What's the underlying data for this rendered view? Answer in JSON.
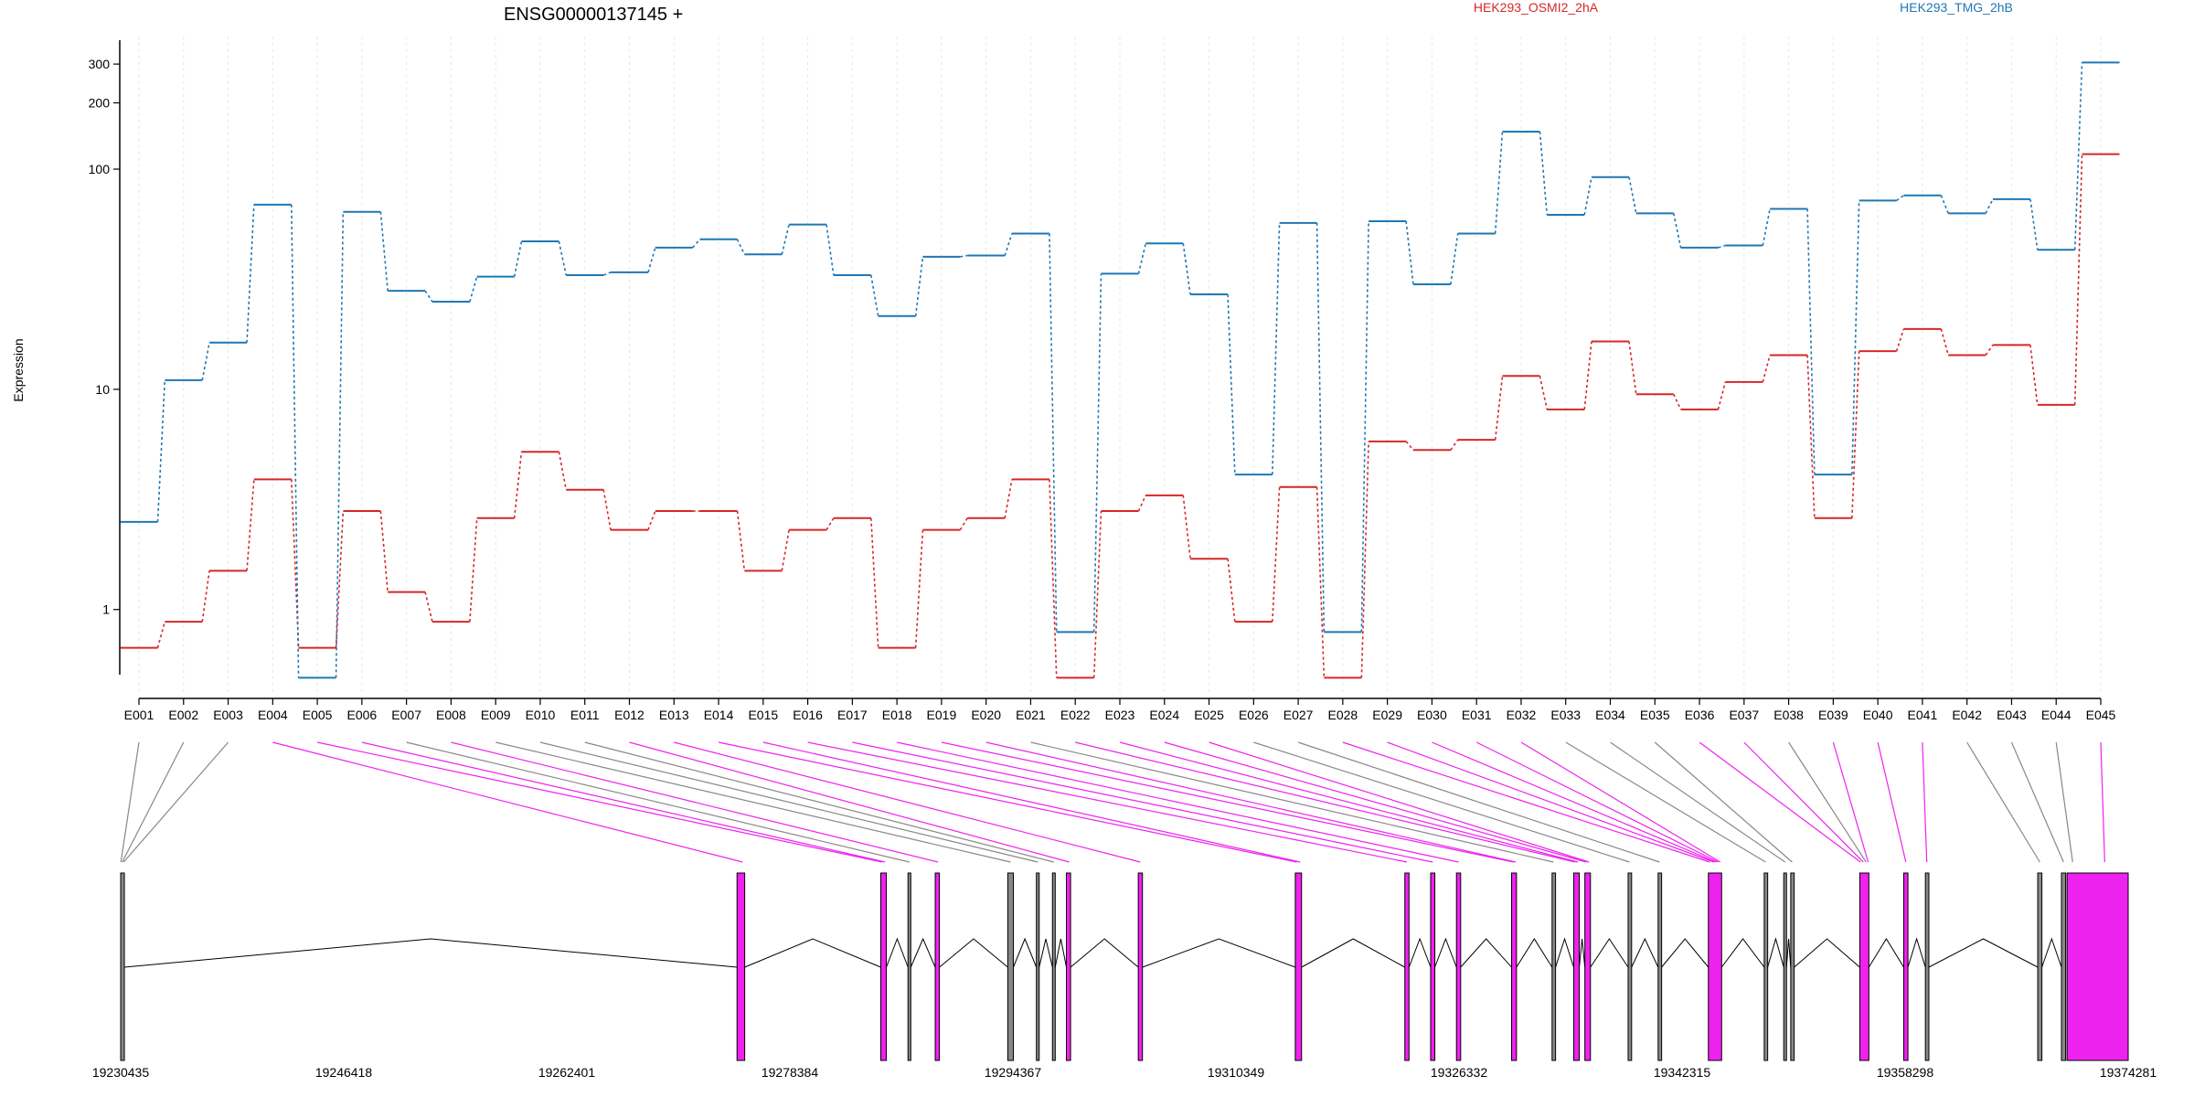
{
  "chart_data": {
    "type": "line",
    "title": "ENSG00000137145 +",
    "ylabel": "Expression",
    "xlabel": "",
    "y_scale": "log",
    "ylim": [
      0.41,
      400
    ],
    "yticks": [
      1,
      10,
      100,
      200,
      300
    ],
    "grid": "vertical dotted lines at each exon",
    "legend_position": "top",
    "categories": [
      "E001",
      "E002",
      "E003",
      "E004",
      "E005",
      "E006",
      "E007",
      "E008",
      "E009",
      "E010",
      "E011",
      "E012",
      "E013",
      "E014",
      "E015",
      "E016",
      "E017",
      "E018",
      "E019",
      "E020",
      "E021",
      "E022",
      "E023",
      "E024",
      "E025",
      "E026",
      "E027",
      "E028",
      "E029",
      "E030",
      "E031",
      "E032",
      "E033",
      "E034",
      "E035",
      "E036",
      "E037",
      "E038",
      "E039",
      "E040",
      "E041",
      "E042",
      "E043",
      "E044",
      "E045"
    ],
    "series": [
      {
        "name": "HEK293_OSMI2_2hA",
        "color": "#d62728",
        "values": [
          0.67,
          0.88,
          1.5,
          3.9,
          0.67,
          2.8,
          1.2,
          0.88,
          2.6,
          5.2,
          3.5,
          2.3,
          2.8,
          2.8,
          1.5,
          2.3,
          2.6,
          0.67,
          2.3,
          2.6,
          3.9,
          0.49,
          2.8,
          3.3,
          1.7,
          0.88,
          3.6,
          0.49,
          5.8,
          5.3,
          5.9,
          11.5,
          8.1,
          16.5,
          9.5,
          8.1,
          10.8,
          14.3,
          2.6,
          14.9,
          18.8,
          14.3,
          15.9,
          8.5,
          117
        ]
      },
      {
        "name": "HEK293_TMG_2hB",
        "color": "#1f77b4",
        "values": [
          2.5,
          11.0,
          16.3,
          69,
          0.49,
          64,
          28,
          25,
          32.5,
          47,
          33,
          34,
          44,
          48,
          41,
          56,
          33,
          21.5,
          40,
          40.5,
          51,
          0.79,
          33.5,
          46,
          27,
          4.1,
          57,
          0.79,
          58,
          30,
          51,
          148,
          62,
          92,
          63,
          44,
          45,
          66,
          4.1,
          72,
          76,
          63,
          73,
          43,
          305
        ]
      }
    ],
    "coordinates": [
      "19230435",
      "19246418",
      "19262401",
      "19278384",
      "19294367",
      "19310349",
      "19326332",
      "19342315",
      "19358298",
      "19374281"
    ],
    "gene_range": [
      19230435,
      19374281
    ],
    "exon_colors": {
      "default": "#888888",
      "highlight": "#ee22ee",
      "outline": "#000000"
    },
    "exons": [
      {
        "start": 19230435,
        "end": 19230700,
        "color": "default"
      },
      {
        "start": 19274600,
        "end": 19275150,
        "color": "highlight"
      },
      {
        "start": 19284900,
        "end": 19285300,
        "color": "highlight"
      },
      {
        "start": 19286850,
        "end": 19287050,
        "color": "default"
      },
      {
        "start": 19288800,
        "end": 19289100,
        "color": "highlight"
      },
      {
        "start": 19294000,
        "end": 19294400,
        "color": "default"
      },
      {
        "start": 19296050,
        "end": 19296250,
        "color": "default"
      },
      {
        "start": 19297200,
        "end": 19297400,
        "color": "default"
      },
      {
        "start": 19298200,
        "end": 19298500,
        "color": "highlight"
      },
      {
        "start": 19303350,
        "end": 19303650,
        "color": "highlight"
      },
      {
        "start": 19314600,
        "end": 19315050,
        "color": "highlight"
      },
      {
        "start": 19322450,
        "end": 19322750,
        "color": "highlight"
      },
      {
        "start": 19324300,
        "end": 19324600,
        "color": "highlight"
      },
      {
        "start": 19326150,
        "end": 19326450,
        "color": "highlight"
      },
      {
        "start": 19330100,
        "end": 19330450,
        "color": "highlight"
      },
      {
        "start": 19333000,
        "end": 19333250,
        "color": "default"
      },
      {
        "start": 19334550,
        "end": 19334950,
        "color": "highlight"
      },
      {
        "start": 19335350,
        "end": 19335750,
        "color": "highlight"
      },
      {
        "start": 19338450,
        "end": 19338700,
        "color": "default"
      },
      {
        "start": 19340600,
        "end": 19340850,
        "color": "default"
      },
      {
        "start": 19344200,
        "end": 19345150,
        "color": "highlight"
      },
      {
        "start": 19348200,
        "end": 19348450,
        "color": "default"
      },
      {
        "start": 19349600,
        "end": 19349800,
        "color": "default"
      },
      {
        "start": 19350100,
        "end": 19350350,
        "color": "default"
      },
      {
        "start": 19355050,
        "end": 19355700,
        "color": "highlight"
      },
      {
        "start": 19358200,
        "end": 19358500,
        "color": "highlight"
      },
      {
        "start": 19359750,
        "end": 19360000,
        "color": "default"
      },
      {
        "start": 19367800,
        "end": 19368100,
        "color": "default"
      },
      {
        "start": 19369500,
        "end": 19369800,
        "color": "default"
      },
      {
        "start": 19369900,
        "end": 19374281,
        "color": "highlight"
      }
    ],
    "exon_bin_map": [
      {
        "exon": "E001",
        "genomic": 19230450
      },
      {
        "exon": "E002",
        "genomic": 19230550
      },
      {
        "exon": "E003",
        "genomic": 19230650
      },
      {
        "exon": "E004",
        "genomic": 19275000
      },
      {
        "exon": "E005",
        "genomic": 19285000
      },
      {
        "exon": "E006",
        "genomic": 19285200
      },
      {
        "exon": "E007",
        "genomic": 19286950
      },
      {
        "exon": "E008",
        "genomic": 19289000
      },
      {
        "exon": "E009",
        "genomic": 19294200
      },
      {
        "exon": "E010",
        "genomic": 19296150
      },
      {
        "exon": "E011",
        "genomic": 19297300
      },
      {
        "exon": "E012",
        "genomic": 19298400
      },
      {
        "exon": "E013",
        "genomic": 19303500
      },
      {
        "exon": "E014",
        "genomic": 19314700
      },
      {
        "exon": "E015",
        "genomic": 19314950
      },
      {
        "exon": "E016",
        "genomic": 19322600
      },
      {
        "exon": "E017",
        "genomic": 19324450
      },
      {
        "exon": "E018",
        "genomic": 19326300
      },
      {
        "exon": "E019",
        "genomic": 19330250
      },
      {
        "exon": "E020",
        "genomic": 19330400
      },
      {
        "exon": "E021",
        "genomic": 19333100
      },
      {
        "exon": "E022",
        "genomic": 19334650
      },
      {
        "exon": "E023",
        "genomic": 19334850
      },
      {
        "exon": "E024",
        "genomic": 19335450
      },
      {
        "exon": "E025",
        "genomic": 19335650
      },
      {
        "exon": "E026",
        "genomic": 19338550
      },
      {
        "exon": "E027",
        "genomic": 19340700
      },
      {
        "exon": "E028",
        "genomic": 19344300
      },
      {
        "exon": "E029",
        "genomic": 19344600
      },
      {
        "exon": "E030",
        "genomic": 19344750
      },
      {
        "exon": "E031",
        "genomic": 19344900
      },
      {
        "exon": "E032",
        "genomic": 19345050
      },
      {
        "exon": "E033",
        "genomic": 19348300
      },
      {
        "exon": "E034",
        "genomic": 19349700
      },
      {
        "exon": "E035",
        "genomic": 19350200
      },
      {
        "exon": "E036",
        "genomic": 19355100
      },
      {
        "exon": "E037",
        "genomic": 19355300
      },
      {
        "exon": "E038",
        "genomic": 19355500
      },
      {
        "exon": "E039",
        "genomic": 19355650
      },
      {
        "exon": "E040",
        "genomic": 19358350
      },
      {
        "exon": "E041",
        "genomic": 19359850
      },
      {
        "exon": "E042",
        "genomic": 19367950
      },
      {
        "exon": "E043",
        "genomic": 19369650
      },
      {
        "exon": "E044",
        "genomic": 19370300
      },
      {
        "exon": "E045",
        "genomic": 19372600
      }
    ],
    "exon_bin_map_colors": [
      "default",
      "default",
      "default",
      "highlight",
      "highlight",
      "highlight",
      "default",
      "highlight",
      "default",
      "default",
      "default",
      "highlight",
      "highlight",
      "highlight",
      "highlight",
      "highlight",
      "highlight",
      "highlight",
      "highlight",
      "highlight",
      "default",
      "highlight",
      "highlight",
      "highlight",
      "highlight",
      "default",
      "default",
      "highlight",
      "highlight",
      "highlight",
      "highlight",
      "highlight",
      "default",
      "default",
      "default",
      "highlight",
      "highlight",
      "default",
      "highlight",
      "highlight",
      "highlight",
      "default",
      "default",
      "default",
      "highlight"
    ]
  }
}
